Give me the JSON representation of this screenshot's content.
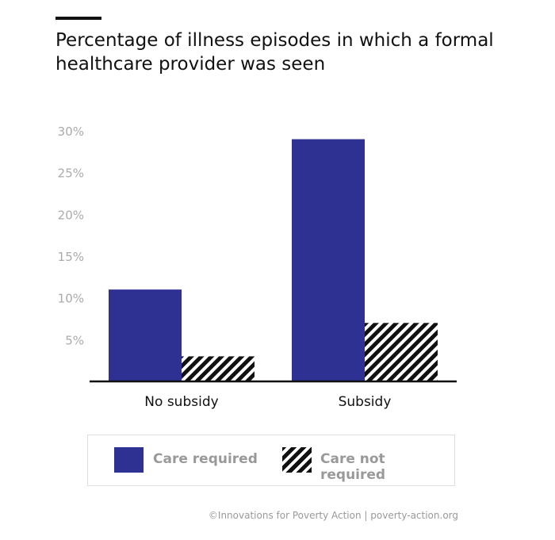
{
  "chart_data": {
    "type": "bar",
    "title": "Percentage of illness episodes in which a formal healthcare provider was seen",
    "categories": [
      "No subsidy",
      "Subsidy"
    ],
    "series": [
      {
        "name": "Care required",
        "values": [
          11,
          29
        ],
        "color": "#2e3192",
        "pattern": "solid"
      },
      {
        "name": "Care not required",
        "values": [
          3,
          7
        ],
        "color": "#111111",
        "pattern": "hatched"
      }
    ],
    "ylim": [
      0,
      30
    ],
    "yticks": [
      5,
      10,
      15,
      20,
      25,
      30
    ],
    "ytick_labels": [
      "5%",
      "10%",
      "15%",
      "20%",
      "25%",
      "30%"
    ],
    "xlabel": "",
    "ylabel": "",
    "grid": false,
    "legend": "bottom"
  },
  "legend": {
    "item1": "Care required",
    "item2": "Care not required"
  },
  "credit": "©Innovations for Poverty Action | poverty-action.org"
}
